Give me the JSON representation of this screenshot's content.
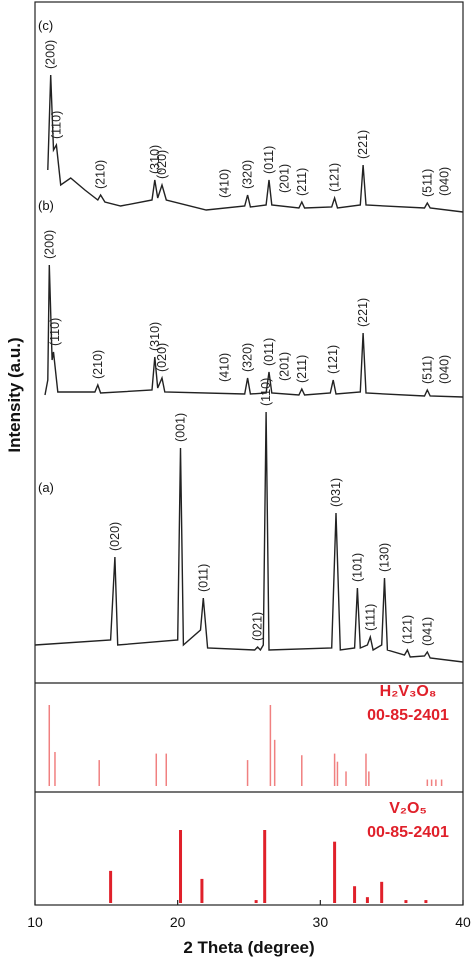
{
  "chart_data": {
    "type": "xrd",
    "xlabel": "2 Theta (degree)",
    "ylabel": "Intensity (a.u.)",
    "xlim": [
      10,
      40
    ],
    "xticks": [
      10,
      20,
      30,
      40
    ],
    "series": [
      {
        "name": "(c)",
        "color": "#222222",
        "x": [
          10.9,
          11.1,
          11.3,
          11.5,
          11.8,
          12.5,
          13.5,
          14.4,
          14.6,
          14.9,
          16,
          18.2,
          18.4,
          18.6,
          18.9,
          19.2,
          22,
          24.7,
          24.9,
          25.1,
          26.2,
          26.4,
          26.6,
          28.5,
          28.7,
          28.9,
          30.8,
          31.0,
          31.2,
          32.8,
          33.0,
          33.2,
          37.3,
          37.5,
          37.7,
          40
        ],
        "values": [
          45,
          140,
          65,
          70,
          30,
          37,
          25,
          15,
          20,
          13,
          9,
          15,
          35,
          17,
          30,
          15,
          5,
          9,
          20,
          8,
          10,
          35,
          10,
          7,
          13,
          7,
          8,
          17,
          7,
          10,
          50,
          10,
          7,
          12,
          7,
          3
        ],
        "peaks": [
          {
            "label": "(200)",
            "x": 11.1
          },
          {
            "label": "(110)",
            "x": 11.5
          },
          {
            "label": "(210)",
            "x": 14.6
          },
          {
            "label": "(310)",
            "x": 18.4
          },
          {
            "label": "(020)",
            "x": 18.9
          },
          {
            "label": "(410)",
            "x": 23.3
          },
          {
            "label": "(320)",
            "x": 24.9
          },
          {
            "label": "(011)",
            "x": 26.4
          },
          {
            "label": "(201)",
            "x": 27.5
          },
          {
            "label": "(211)",
            "x": 28.7
          },
          {
            "label": "(121)",
            "x": 31.0
          },
          {
            "label": "(221)",
            "x": 33.0
          },
          {
            "label": "(511)",
            "x": 37.5
          },
          {
            "label": "(040)",
            "x": 38.7
          }
        ]
      },
      {
        "name": "(b)",
        "color": "#222222",
        "x": [
          10.7,
          10.9,
          11.0,
          11.2,
          11.3,
          11.6,
          14.2,
          14.4,
          14.6,
          18.2,
          18.4,
          18.6,
          18.9,
          19.1,
          24.7,
          24.9,
          25.1,
          26.2,
          26.4,
          26.6,
          28.5,
          28.7,
          28.9,
          30.7,
          30.9,
          31.1,
          32.8,
          33.0,
          33.2,
          37.3,
          37.5,
          37.7,
          40
        ],
        "values": [
          5,
          20,
          135,
          40,
          48,
          8,
          8,
          15,
          7,
          10,
          43,
          12,
          22,
          8,
          6,
          22,
          6,
          7,
          28,
          7,
          5,
          11,
          5,
          7,
          20,
          6,
          8,
          67,
          7,
          4,
          10,
          4,
          3
        ],
        "peaks": [
          {
            "label": "(200)",
            "x": 11.0
          },
          {
            "label": "(110)",
            "x": 11.4
          },
          {
            "label": "(210)",
            "x": 14.4
          },
          {
            "label": "(310)",
            "x": 18.4
          },
          {
            "label": "(020)",
            "x": 18.9
          },
          {
            "label": "(410)",
            "x": 23.3
          },
          {
            "label": "(320)",
            "x": 24.9
          },
          {
            "label": "(011)",
            "x": 26.4
          },
          {
            "label": "(201)",
            "x": 27.5
          },
          {
            "label": "(211)",
            "x": 28.7
          },
          {
            "label": "(121)",
            "x": 30.9
          },
          {
            "label": "(221)",
            "x": 33.0
          },
          {
            "label": "(511)",
            "x": 37.5
          },
          {
            "label": "(040)",
            "x": 38.7
          }
        ]
      },
      {
        "name": "(a)",
        "color": "#222222",
        "x": [
          10,
          15.3,
          15.6,
          15.8,
          20,
          20.2,
          20.4,
          21.6,
          21.8,
          22.1,
          25.4,
          25.6,
          25.8,
          26.0,
          26.2,
          26.4,
          30.8,
          31.1,
          31.4,
          32.4,
          32.6,
          32.8,
          33.3,
          33.5,
          33.7,
          34.3,
          34.5,
          34.7,
          35.9,
          36.1,
          36.3,
          37.3,
          37.5,
          37.7,
          40
        ],
        "values": [
          20,
          25,
          108,
          20,
          25,
          217,
          20,
          35,
          67,
          17,
          15,
          18,
          15,
          20,
          253,
          15,
          17,
          152,
          15,
          17,
          77,
          17,
          20,
          28,
          15,
          20,
          87,
          15,
          10,
          15,
          8,
          9,
          13,
          7,
          3
        ],
        "peaks": [
          {
            "label": "(020)",
            "x": 15.6
          },
          {
            "label": "(001)",
            "x": 20.2
          },
          {
            "label": "(011)",
            "x": 21.8
          },
          {
            "label": "(021)",
            "x": 25.6
          },
          {
            "label": "(110)",
            "x": 26.2
          },
          {
            "label": "(031)",
            "x": 31.1
          },
          {
            "label": "(101)",
            "x": 32.6
          },
          {
            "label": "(111)",
            "x": 33.5
          },
          {
            "label": "(130)",
            "x": 34.5
          },
          {
            "label": "(121)",
            "x": 36.1
          },
          {
            "label": "(041)",
            "x": 37.5
          }
        ]
      }
    ],
    "references": [
      {
        "name": "H₂V₃O₈",
        "code": "00-85-2401",
        "color": "#f08080",
        "positions": [
          11.0,
          11.4,
          14.5,
          18.5,
          19.2,
          24.9,
          26.5,
          26.8,
          28.7,
          31.0,
          31.2,
          31.8,
          33.2,
          33.4,
          37.5,
          37.8,
          38.1,
          38.5
        ],
        "intensities": [
          100,
          42,
          32,
          40,
          40,
          32,
          100,
          57,
          38,
          40,
          30,
          18,
          40,
          18,
          8,
          8,
          8,
          8
        ]
      },
      {
        "name": "V₂O₅",
        "code": "00-85-2401",
        "color": "#e0202a",
        "positions": [
          15.3,
          20.2,
          21.7,
          25.5,
          26.1,
          31.0,
          32.4,
          33.3,
          34.3,
          36.0,
          37.4
        ],
        "intensities": [
          44,
          100,
          33,
          4,
          100,
          84,
          23,
          8,
          29,
          4,
          4
        ]
      }
    ]
  }
}
